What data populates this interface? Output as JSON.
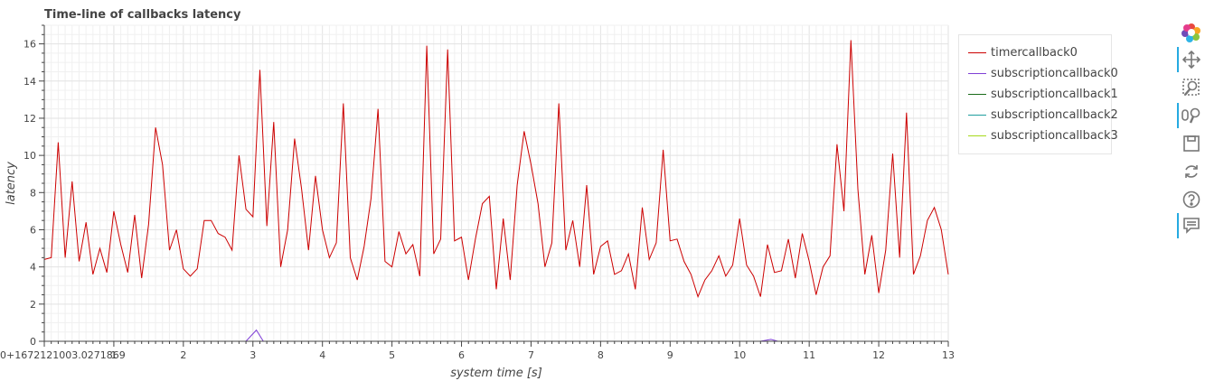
{
  "chart_data": {
    "type": "line",
    "title": "Time-line of callbacks latency",
    "xlabel": "system time [s]",
    "ylabel": "latency",
    "x_offset_label": "0+1672121003.0271869",
    "xlim": [
      0,
      13
    ],
    "ylim": [
      0,
      17
    ],
    "x_ticks": [
      1,
      2,
      3,
      4,
      5,
      6,
      7,
      8,
      9,
      10,
      11,
      12,
      13
    ],
    "y_ticks": [
      0,
      2,
      4,
      6,
      8,
      10,
      12,
      14,
      16
    ],
    "grid": true,
    "legend_position": "top-right",
    "series": [
      {
        "name": "timercallback0",
        "color": "#cc0000",
        "x": [
          0.0,
          0.1,
          0.2,
          0.3,
          0.4,
          0.5,
          0.6,
          0.7,
          0.8,
          0.9,
          1.0,
          1.1,
          1.2,
          1.3,
          1.4,
          1.5,
          1.6,
          1.7,
          1.8,
          1.9,
          2.0,
          2.1,
          2.2,
          2.3,
          2.4,
          2.5,
          2.6,
          2.7,
          2.8,
          2.9,
          3.0,
          3.1,
          3.2,
          3.3,
          3.4,
          3.5,
          3.6,
          3.7,
          3.8,
          3.9,
          4.0,
          4.1,
          4.2,
          4.3,
          4.4,
          4.5,
          4.6,
          4.7,
          4.8,
          4.9,
          5.0,
          5.1,
          5.2,
          5.3,
          5.4,
          5.5,
          5.6,
          5.7,
          5.8,
          5.9,
          6.0,
          6.1,
          6.2,
          6.3,
          6.4,
          6.5,
          6.6,
          6.7,
          6.8,
          6.9,
          7.0,
          7.1,
          7.2,
          7.3,
          7.4,
          7.5,
          7.6,
          7.7,
          7.8,
          7.9,
          8.0,
          8.1,
          8.2,
          8.3,
          8.4,
          8.5,
          8.6,
          8.7,
          8.8,
          8.9,
          9.0,
          9.1,
          9.2,
          9.3,
          9.4,
          9.5,
          9.6,
          9.7,
          9.8,
          9.9,
          10.0,
          10.1,
          10.2,
          10.3,
          10.4,
          10.5,
          10.6,
          10.7,
          10.8,
          10.9,
          11.0,
          11.1,
          11.2,
          11.3,
          11.4,
          11.5,
          11.6,
          11.7,
          11.8,
          11.9,
          12.0,
          12.1,
          12.2,
          12.3,
          12.4,
          12.5,
          12.6,
          12.7,
          12.8,
          12.9,
          13.0
        ],
        "values": [
          4.4,
          4.5,
          10.7,
          4.5,
          8.6,
          4.3,
          6.4,
          3.6,
          5.0,
          3.7,
          7.0,
          5.2,
          3.7,
          6.8,
          3.4,
          6.3,
          11.5,
          9.5,
          4.9,
          6.0,
          3.9,
          3.5,
          3.9,
          6.5,
          6.5,
          5.8,
          5.6,
          4.9,
          10.0,
          7.1,
          6.7,
          14.6,
          6.2,
          11.8,
          4.0,
          6.0,
          10.9,
          8.2,
          4.9,
          8.9,
          6.0,
          4.5,
          5.3,
          12.8,
          4.5,
          3.3,
          5.1,
          7.7,
          12.5,
          4.3,
          4.0,
          5.9,
          4.7,
          5.2,
          3.5,
          15.9,
          4.7,
          5.5,
          15.7,
          5.4,
          5.6,
          3.3,
          5.5,
          7.4,
          7.8,
          2.8,
          6.6,
          3.3,
          8.4,
          11.3,
          9.5,
          7.4,
          4.0,
          5.3,
          12.8,
          4.9,
          6.5,
          4.0,
          8.4,
          3.6,
          5.1,
          5.4,
          3.6,
          3.8,
          4.7,
          2.8,
          7.2,
          4.4,
          5.3,
          10.3,
          5.4,
          5.5,
          4.3,
          3.6,
          2.4,
          3.3,
          3.8,
          4.6,
          3.5,
          4.1,
          6.6,
          4.1,
          3.5,
          2.4,
          5.2,
          3.7,
          3.8,
          5.5,
          3.4,
          5.8,
          4.3,
          2.5,
          4.0,
          4.6,
          10.6,
          7.0,
          16.2,
          8.2,
          3.6,
          5.7,
          2.6,
          4.9,
          10.1,
          4.5,
          12.3,
          3.6,
          4.6,
          6.5,
          7.2,
          6.0,
          3.6
        ]
      },
      {
        "name": "subscriptioncallback0",
        "color": "#7f3fd6",
        "x": [
          0.0,
          2.9,
          3.05,
          3.15,
          10.3,
          10.45,
          10.55,
          13.0
        ],
        "values": [
          0.0,
          0.0,
          0.6,
          0.0,
          0.0,
          0.1,
          0.0,
          0.0
        ]
      },
      {
        "name": "subscriptioncallback1",
        "color": "#1a6b1a",
        "x": [
          0.0,
          13.0
        ],
        "values": [
          0.0,
          0.0
        ]
      },
      {
        "name": "subscriptioncallback2",
        "color": "#1f9e9e",
        "x": [
          0.0,
          13.0
        ],
        "values": [
          0.0,
          0.0
        ]
      },
      {
        "name": "subscriptioncallback3",
        "color": "#a6d91a",
        "x": [
          0.0,
          13.0
        ],
        "values": [
          0.0,
          0.0
        ]
      }
    ]
  },
  "toolbar": {
    "tools": [
      {
        "icon": "bokeh-logo-icon",
        "active": false
      },
      {
        "icon": "pan-icon",
        "active": true
      },
      {
        "icon": "box-zoom-icon",
        "active": false
      },
      {
        "icon": "wheel-zoom-icon",
        "active": true
      },
      {
        "icon": "save-icon",
        "active": false
      },
      {
        "icon": "reset-icon",
        "active": false
      },
      {
        "icon": "help-icon",
        "active": false
      },
      {
        "icon": "hover-icon",
        "active": true
      }
    ]
  }
}
